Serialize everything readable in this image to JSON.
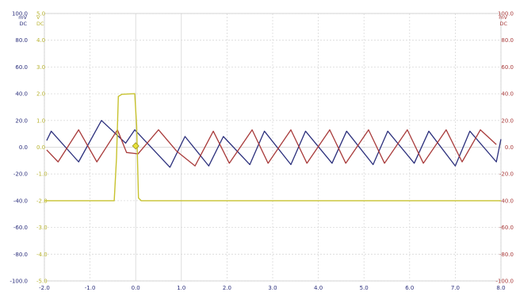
{
  "chart_data": {
    "type": "line",
    "x_ticks": [
      "-2.0",
      "-1.0",
      "0.0",
      "1.0",
      "2.0",
      "3.0",
      "4.0",
      "5.0",
      "6.0",
      "7.0",
      "8.0"
    ],
    "xlim": [
      -2.0,
      8.0
    ],
    "left_axis": {
      "range": "100.0",
      "unit": "mV",
      "coupling": "DC",
      "ticks": [
        "100.0",
        "80.0",
        "60.0",
        "40.0",
        "20.0",
        "0.0",
        "-20.0",
        "-40.0",
        "-60.0",
        "-80.0",
        "-100.0"
      ],
      "ylim": [
        -100,
        100
      ]
    },
    "yellow_axis": {
      "range": "5.0",
      "unit": "V",
      "coupling": "DC",
      "ticks": [
        "5.0",
        "4.0",
        "3.0",
        "2.0",
        "1.0",
        "0.0",
        "-1.0",
        "-2.0",
        "-3.0",
        "-4.0",
        "-5.0"
      ],
      "ylim": [
        -5,
        5
      ]
    },
    "right_axis": {
      "range": "100.0",
      "unit": "mV",
      "coupling": "DC",
      "ticks": [
        "100.0",
        "80.0",
        "60.0",
        "40.0",
        "20.0",
        "0.0",
        "-20.0",
        "-40.0",
        "-60.0",
        "-80.0",
        "-100.0"
      ],
      "ylim": [
        -100,
        100
      ]
    },
    "grid": true,
    "series": [
      {
        "color": "#2b2f7c",
        "axis": "left",
        "points": [
          [
            -1.95,
            5
          ],
          [
            -1.85,
            12
          ],
          [
            -1.25,
            -11
          ],
          [
            -0.75,
            20
          ],
          [
            -0.22,
            3
          ],
          [
            -0.02,
            13
          ],
          [
            0.75,
            -15
          ],
          [
            1.08,
            8
          ],
          [
            1.6,
            -14
          ],
          [
            1.92,
            8
          ],
          [
            2.5,
            -13
          ],
          [
            2.82,
            12
          ],
          [
            3.4,
            -13
          ],
          [
            3.72,
            12
          ],
          [
            4.3,
            -12
          ],
          [
            4.62,
            12
          ],
          [
            5.2,
            -13
          ],
          [
            5.52,
            12
          ],
          [
            6.1,
            -12
          ],
          [
            6.42,
            12
          ],
          [
            7.0,
            -14
          ],
          [
            7.32,
            12
          ],
          [
            7.9,
            -11
          ],
          [
            8.0,
            6
          ]
        ]
      },
      {
        "color": "#a83a3a",
        "axis": "right",
        "points": [
          [
            -1.95,
            -2
          ],
          [
            -1.7,
            -11
          ],
          [
            -1.25,
            13
          ],
          [
            -0.85,
            -11
          ],
          [
            -0.4,
            13
          ],
          [
            -0.2,
            -4
          ],
          [
            0.05,
            -5
          ],
          [
            0.5,
            13
          ],
          [
            0.9,
            -3
          ],
          [
            1.3,
            -14
          ],
          [
            1.7,
            12
          ],
          [
            2.05,
            -12
          ],
          [
            2.55,
            13
          ],
          [
            2.9,
            -12
          ],
          [
            3.4,
            13
          ],
          [
            3.75,
            -12
          ],
          [
            4.25,
            13
          ],
          [
            4.6,
            -12
          ],
          [
            5.1,
            13
          ],
          [
            5.45,
            -12
          ],
          [
            5.95,
            13
          ],
          [
            6.3,
            -12
          ],
          [
            6.8,
            13
          ],
          [
            7.15,
            -11
          ],
          [
            7.55,
            13
          ],
          [
            7.9,
            2
          ]
        ]
      },
      {
        "color": "#c7c22e",
        "axis": "yellow",
        "points": [
          [
            -2.0,
            -2.0
          ],
          [
            -0.47,
            -2.0
          ],
          [
            -0.42,
            -0.4
          ],
          [
            -0.38,
            1.9
          ],
          [
            -0.3,
            1.98
          ],
          [
            -0.02,
            2.0
          ],
          [
            0.02,
            0.8
          ],
          [
            0.06,
            -1.9
          ],
          [
            0.12,
            -2.0
          ],
          [
            8.0,
            -2.0
          ]
        ]
      }
    ],
    "marker": {
      "x": 0.0,
      "y": 1
    }
  }
}
